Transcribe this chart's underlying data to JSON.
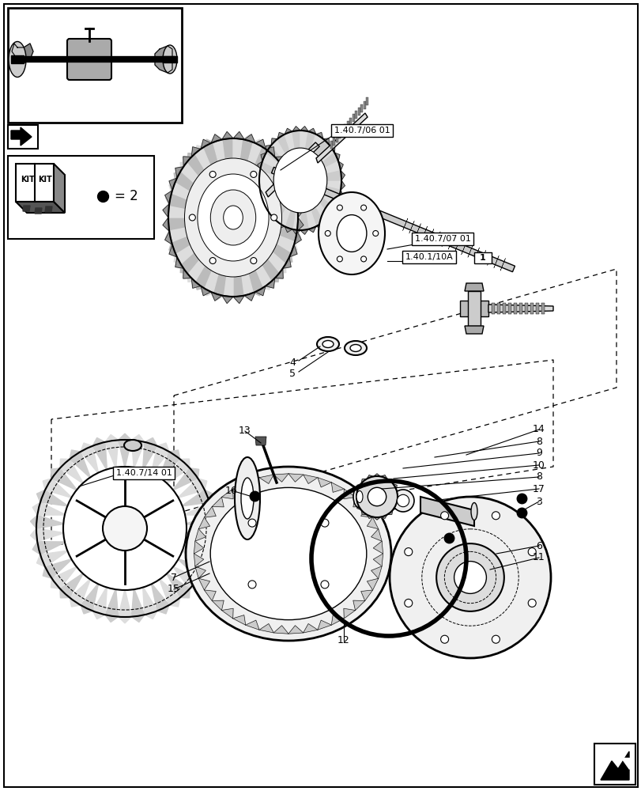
{
  "bg_color": "#ffffff",
  "figsize": [
    8.12,
    10.0
  ],
  "dpi": 100,
  "labels": {
    "ref1": "1.40.7/06 01",
    "ref2": "1.40.7/07 01",
    "ref3": "1.40.1/10A",
    "ref3_num": "1",
    "ref4": "1.40.7/14 01",
    "kit_eq": "= 2"
  }
}
